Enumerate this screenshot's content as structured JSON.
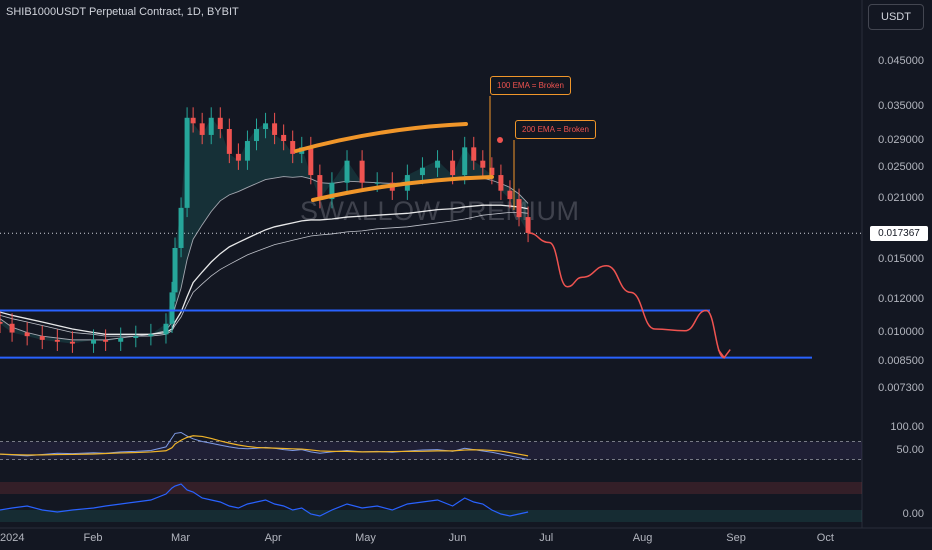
{
  "header": {
    "title": "SHIB1000USDT Perpetual Contract, 1D, BYBIT",
    "currency_button": "USDT",
    "watermark": "SWALLOW PREMIUM"
  },
  "annotations": {
    "ema100": "100 EMA = Broken",
    "ema200": "200 EMA = Broken"
  },
  "colors": {
    "background": "#131722",
    "up": "#26a69a",
    "down": "#ef5350",
    "channel": "#f0962a",
    "support": "#2962ff",
    "projection": "#ef5350",
    "ema": "#e0e3eb"
  },
  "chart_data": [
    {
      "type": "line",
      "subtype": "candlestick",
      "title": "SHIB1000USDT Perpetual Contract, 1D, BYBIT",
      "xlabel": "",
      "ylabel": "",
      "yscale": "log",
      "ylim": [
        0.0065,
        0.052
      ],
      "price_ticks": [
        "0.045000",
        "0.035000",
        "0.029000",
        "0.025000",
        "0.021000",
        "0.017367",
        "0.015000",
        "0.012000",
        "0.010000",
        "0.008500",
        "0.007300"
      ],
      "last_price": "0.017367",
      "time_ticks": [
        "2024",
        "Feb",
        "Mar",
        "Apr",
        "May",
        "Jun",
        "Jul",
        "Aug",
        "Sep",
        "Oct"
      ],
      "x": [
        "2024-01-01",
        "2024-01-05",
        "2024-01-10",
        "2024-01-15",
        "2024-01-20",
        "2024-01-25",
        "2024-02-01",
        "2024-02-05",
        "2024-02-10",
        "2024-02-15",
        "2024-02-20",
        "2024-02-25",
        "2024-02-27",
        "2024-02-28",
        "2024-03-01",
        "2024-03-03",
        "2024-03-05",
        "2024-03-08",
        "2024-03-11",
        "2024-03-14",
        "2024-03-17",
        "2024-03-20",
        "2024-03-23",
        "2024-03-26",
        "2024-03-29",
        "2024-04-01",
        "2024-04-04",
        "2024-04-07",
        "2024-04-10",
        "2024-04-13",
        "2024-04-16",
        "2024-04-20",
        "2024-04-25",
        "2024-04-30",
        "2024-05-05",
        "2024-05-10",
        "2024-05-15",
        "2024-05-20",
        "2024-05-25",
        "2024-05-30",
        "2024-06-03",
        "2024-06-06",
        "2024-06-09",
        "2024-06-12",
        "2024-06-15",
        "2024-06-18",
        "2024-06-21",
        "2024-06-24"
      ],
      "series": [
        {
          "values": [
            0.0105,
            0.01,
            0.0098,
            0.0096,
            0.0095,
            0.0094,
            0.0096,
            0.0095,
            0.0097,
            0.0098,
            0.0099,
            0.0105,
            0.0125,
            0.016,
            0.02,
            0.033,
            0.032,
            0.03,
            0.033,
            0.031,
            0.027,
            0.026,
            0.029,
            0.031,
            0.032,
            0.03,
            0.029,
            0.027,
            0.028,
            0.024,
            0.021,
            0.023,
            0.026,
            0.023,
            0.023,
            0.022,
            0.024,
            0.025,
            0.026,
            0.024,
            0.028,
            0.026,
            0.025,
            0.024,
            0.022,
            0.021,
            0.019,
            0.0174
          ]
        },
        {
          "name": "",
          "values": [
            0.0108,
            0.0103,
            0.01,
            0.0098,
            0.0097,
            0.0096,
            0.0096,
            0.0096,
            0.0097,
            0.0098,
            0.0099,
            0.0101,
            0.0106,
            0.0115,
            0.0128,
            0.015,
            0.0168,
            0.0182,
            0.0196,
            0.0208,
            0.0215,
            0.0219,
            0.0224,
            0.0229,
            0.0234,
            0.0236,
            0.0238,
            0.0237,
            0.0238,
            0.0235,
            0.023,
            0.0229,
            0.0232,
            0.0231,
            0.023,
            0.0229,
            0.023,
            0.0232,
            0.0234,
            0.0233,
            0.0238,
            0.0238,
            0.0236,
            0.0233,
            0.0229,
            0.0224,
            0.0216,
            0.0205
          ]
        },
        {
          "name": "",
          "values": [
            0.0112,
            0.011,
            0.0108,
            0.0106,
            0.0104,
            0.0102,
            0.01,
            0.0099,
            0.0099,
            0.0099,
            0.0099,
            0.01,
            0.0102,
            0.0106,
            0.0112,
            0.0122,
            0.0132,
            0.014,
            0.0148,
            0.0155,
            0.0161,
            0.0165,
            0.0169,
            0.0173,
            0.0177,
            0.018,
            0.0182,
            0.0184,
            0.0186,
            0.0187,
            0.0187,
            0.0188,
            0.019,
            0.0191,
            0.0192,
            0.0193,
            0.0194,
            0.0196,
            0.0198,
            0.0199,
            0.0201,
            0.0202,
            0.0203,
            0.0203,
            0.0203,
            0.0202,
            0.0201,
            0.0199
          ]
        },
        {
          "name": "",
          "values": [
            0.011,
            0.0108,
            0.0106,
            0.0104,
            0.0102,
            0.01,
            0.0099,
            0.0098,
            0.0098,
            0.0098,
            0.0098,
            0.0099,
            0.0101,
            0.0104,
            0.0109,
            0.0117,
            0.0125,
            0.0131,
            0.0137,
            0.0142,
            0.0146,
            0.015,
            0.0154,
            0.0157,
            0.016,
            0.0163,
            0.0165,
            0.0167,
            0.0169,
            0.0171,
            0.0172,
            0.0173,
            0.0175,
            0.0176,
            0.0178,
            0.0179,
            0.018,
            0.0182,
            0.0184,
            0.0186,
            0.0188,
            0.019,
            0.0192,
            0.0193,
            0.0194,
            0.0195,
            0.0195,
            0.0194
          ]
        }
      ],
      "horizontal_levels": [
        0.0113,
        0.0087
      ],
      "projection_path": [
        [
          "2024-06-24",
          0.0174
        ],
        [
          "2024-07-01",
          0.0165
        ],
        [
          "2024-07-07",
          0.0129
        ],
        [
          "2024-07-12",
          0.0136
        ],
        [
          "2024-07-20",
          0.0145
        ],
        [
          "2024-07-28",
          0.0125
        ],
        [
          "2024-08-05",
          0.0102
        ],
        [
          "2024-08-15",
          0.0101
        ],
        [
          "2024-08-22",
          0.0113
        ],
        [
          "2024-08-28",
          0.0087
        ]
      ]
    },
    {
      "type": "line",
      "title": "",
      "ylim": [
        0,
        100
      ],
      "ticks": [
        "100.00",
        "50.00"
      ],
      "bands": [
        30,
        70
      ]
    },
    {
      "type": "line",
      "title": "",
      "ticks": [
        "0.00"
      ]
    }
  ]
}
